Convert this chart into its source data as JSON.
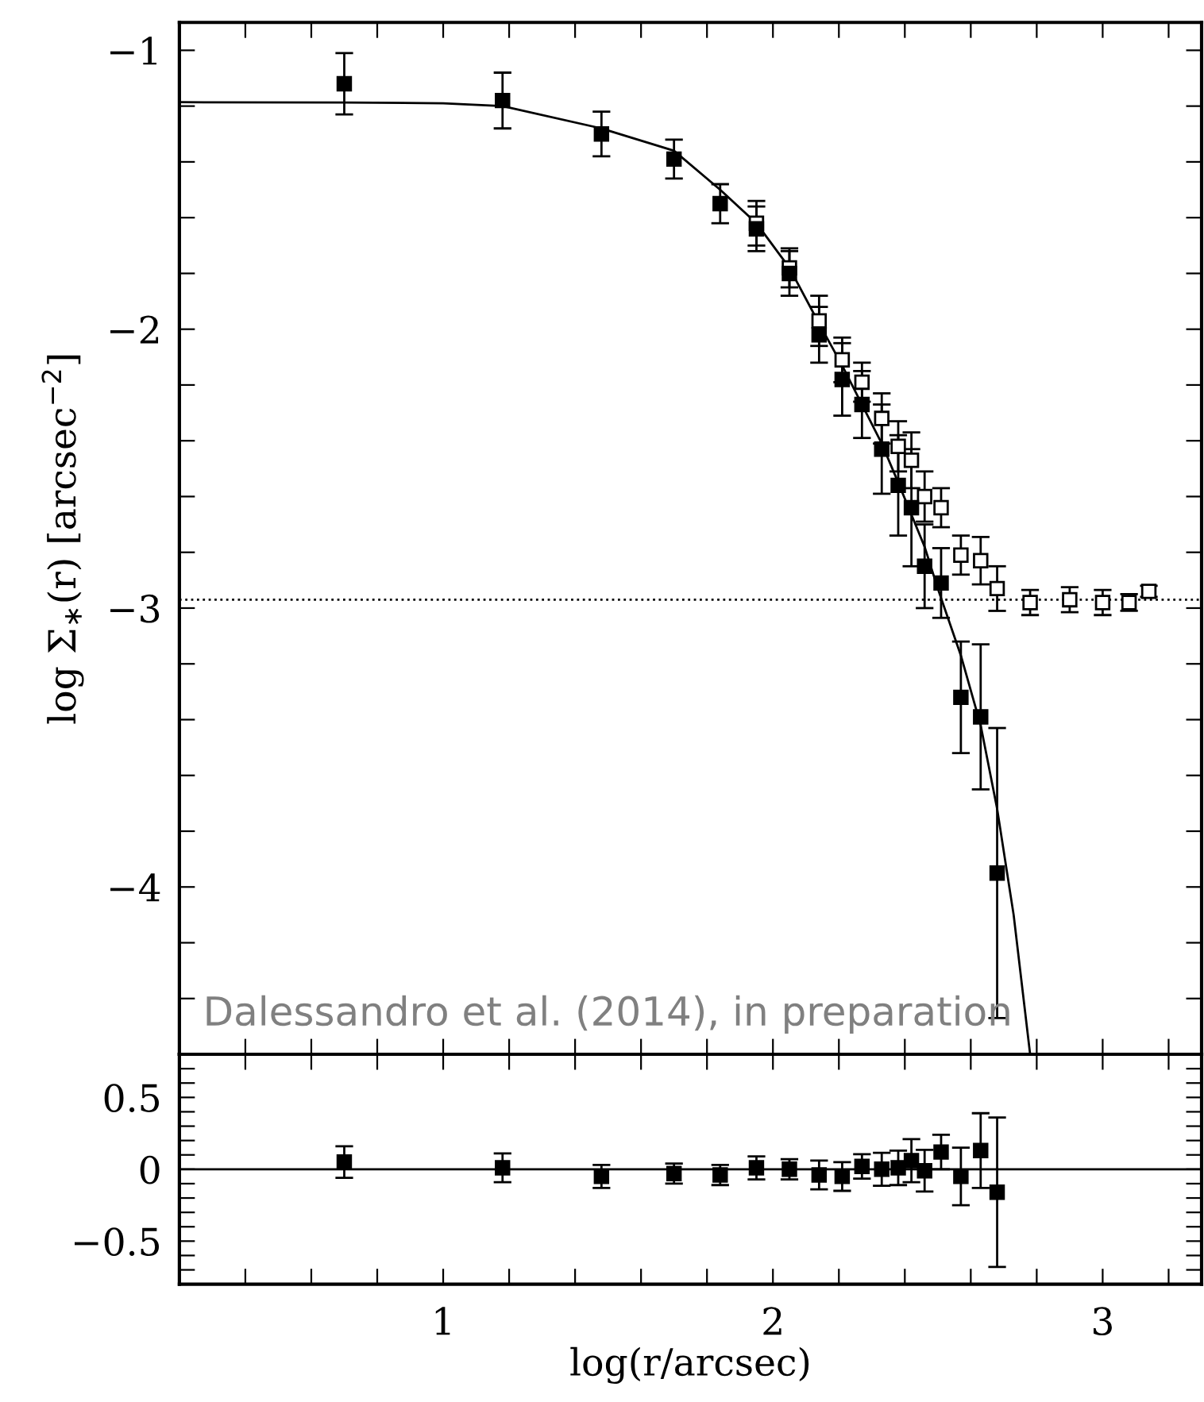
{
  "chart_data": [
    {
      "type": "scatter",
      "ylabel": "log Σ$_{∗}$(r) [arcsec$^{−2}$]",
      "xlim": [
        0.2,
        3.3
      ],
      "ylim": [
        -4.6,
        -0.9
      ],
      "tick_labels": "y",
      "grid": false,
      "marker": "square",
      "xticks": [
        {
          "value": 0.4,
          "label": null
        },
        {
          "value": 0.6,
          "label": null
        },
        {
          "value": 0.8,
          "label": null
        },
        {
          "value": 1,
          "label": null
        },
        {
          "value": 1.2,
          "label": null
        },
        {
          "value": 1.4,
          "label": null
        },
        {
          "value": 1.6,
          "label": null
        },
        {
          "value": 1.8,
          "label": null
        },
        {
          "value": 2,
          "label": null
        },
        {
          "value": 2.2,
          "label": null
        },
        {
          "value": 2.4,
          "label": null
        },
        {
          "value": 2.6,
          "label": null
        },
        {
          "value": 2.8,
          "label": null
        },
        {
          "value": 3,
          "label": null
        },
        {
          "value": 3.2,
          "label": null
        }
      ],
      "yticks": [
        {
          "value": -1,
          "label": "−1"
        },
        {
          "value": -1.2,
          "label": null
        },
        {
          "value": -1.4,
          "label": null
        },
        {
          "value": -1.6,
          "label": null
        },
        {
          "value": -1.8,
          "label": null
        },
        {
          "value": -2,
          "label": "−2"
        },
        {
          "value": -2.2,
          "label": null
        },
        {
          "value": -2.4,
          "label": null
        },
        {
          "value": -2.6,
          "label": null
        },
        {
          "value": -2.8,
          "label": null
        },
        {
          "value": -3,
          "label": "−3"
        },
        {
          "value": -3.2,
          "label": null
        },
        {
          "value": -3.4,
          "label": null
        },
        {
          "value": -3.6,
          "label": null
        },
        {
          "value": -3.8,
          "label": null
        },
        {
          "value": -4,
          "label": "−4"
        },
        {
          "value": -4.2,
          "label": null
        },
        {
          "value": -4.4,
          "label": null
        }
      ],
      "ref_lines": [
        {
          "axis": "y",
          "value": -2.97,
          "line_style": "dotted",
          "color": "#000000"
        }
      ],
      "annotations": [
        "Dalessandro et al. (2014), in preparation"
      ],
      "series": [
        {
          "type": "line",
          "color": "#000000",
          "marker": "none",
          "line_style": "solid",
          "x": [
            0.2,
            0.7,
            1.0,
            1.18,
            1.48,
            1.7,
            1.84,
            1.95,
            2.05,
            2.14,
            2.21,
            2.27,
            2.33,
            2.38,
            2.46,
            2.5,
            2.57,
            2.63,
            2.68,
            2.73,
            2.78
          ],
          "values": [
            -1.186,
            -1.187,
            -1.19,
            -1.2,
            -1.28,
            -1.36,
            -1.5,
            -1.62,
            -1.78,
            -1.98,
            -2.13,
            -2.27,
            -2.41,
            -2.55,
            -2.78,
            -2.93,
            -3.17,
            -3.42,
            -3.72,
            -4.1,
            -4.6
          ]
        },
        {
          "type": "scatter",
          "color": "#000000",
          "x": [
            1.95,
            2.05,
            2.14,
            2.21,
            2.27,
            2.33,
            2.38,
            2.42,
            2.46,
            2.51,
            2.57,
            2.63,
            2.68,
            2.78,
            2.9,
            3.0,
            3.08,
            3.14
          ],
          "values": [
            -1.62,
            -1.78,
            -1.97,
            -2.11,
            -2.19,
            -2.32,
            -2.42,
            -2.47,
            -2.6,
            -2.64,
            -2.81,
            -2.83,
            -2.93,
            -2.98,
            -2.97,
            -2.98,
            -2.98,
            -2.94
          ],
          "errors": [
            0.08,
            0.07,
            0.09,
            0.08,
            0.07,
            0.09,
            0.09,
            0.1,
            0.09,
            0.07,
            0.07,
            0.085,
            0.08,
            0.045,
            0.045,
            0.045,
            0.03,
            0.02
          ]
        },
        {
          "type": "scatter",
          "color": "#000000",
          "x": [
            0.7,
            1.18,
            1.48,
            1.7,
            1.84,
            1.95,
            2.05,
            2.14,
            2.21,
            2.27,
            2.33,
            2.38,
            2.42,
            2.46,
            2.51,
            2.57,
            2.63,
            2.68
          ],
          "values": [
            -1.12,
            -1.18,
            -1.3,
            -1.39,
            -1.55,
            -1.64,
            -1.8,
            -2.02,
            -2.18,
            -2.27,
            -2.43,
            -2.56,
            -2.64,
            -2.85,
            -2.91,
            -3.32,
            -3.39,
            -3.95
          ],
          "errors": [
            0.11,
            0.1,
            0.08,
            0.07,
            0.07,
            0.08,
            0.08,
            0.1,
            0.13,
            0.12,
            0.16,
            0.18,
            0.21,
            0.15,
            0.125,
            0.2,
            0.26,
            0.52
          ]
        }
      ]
    },
    {
      "type": "scatter",
      "xlabel": "log(r/arcsec)",
      "xlim": [
        0.2,
        3.3
      ],
      "ylim": [
        -0.8,
        0.8
      ],
      "grid": false,
      "marker": "square",
      "xticks": [
        {
          "value": 0.4,
          "label": null
        },
        {
          "value": 0.6,
          "label": null
        },
        {
          "value": 0.8,
          "label": null
        },
        {
          "value": 1,
          "label": "1"
        },
        {
          "value": 1.2,
          "label": null
        },
        {
          "value": 1.4,
          "label": null
        },
        {
          "value": 1.6,
          "label": null
        },
        {
          "value": 1.8,
          "label": null
        },
        {
          "value": 2,
          "label": "2"
        },
        {
          "value": 2.2,
          "label": null
        },
        {
          "value": 2.4,
          "label": null
        },
        {
          "value": 2.6,
          "label": null
        },
        {
          "value": 2.8,
          "label": null
        },
        {
          "value": 3,
          "label": "3"
        },
        {
          "value": 3.2,
          "label": null
        }
      ],
      "yticks": [
        {
          "value": 0.7,
          "label": null
        },
        {
          "value": 0.6,
          "label": null
        },
        {
          "value": 0.5,
          "label": "0.5"
        },
        {
          "value": 0.4,
          "label": null
        },
        {
          "value": 0.3,
          "label": null
        },
        {
          "value": 0.2,
          "label": null
        },
        {
          "value": 0.1,
          "label": null
        },
        {
          "value": 0,
          "label": "0"
        },
        {
          "value": -0.1,
          "label": null
        },
        {
          "value": -0.2,
          "label": null
        },
        {
          "value": -0.3,
          "label": null
        },
        {
          "value": -0.4,
          "label": null
        },
        {
          "value": -0.5,
          "label": "−0.5"
        },
        {
          "value": -0.6,
          "label": null
        },
        {
          "value": -0.7,
          "label": null
        }
      ],
      "ref_lines": [
        {
          "axis": "y",
          "value": 0,
          "line_style": "solid",
          "color": "#000000"
        }
      ],
      "series": [
        {
          "type": "scatter",
          "color": "#000000",
          "x": [
            0.7,
            1.18,
            1.48,
            1.7,
            1.84,
            1.95,
            2.05,
            2.14,
            2.21,
            2.27,
            2.33,
            2.38,
            2.42,
            2.46,
            2.51,
            2.57,
            2.63,
            2.68
          ],
          "values": [
            0.05,
            0.01,
            -0.05,
            -0.03,
            -0.04,
            0.01,
            0,
            -0.04,
            -0.05,
            0.02,
            0,
            0.01,
            0.06,
            -0.01,
            0.12,
            -0.05,
            0.13,
            -0.16
          ],
          "errors": [
            0.11,
            0.1,
            0.08,
            0.07,
            0.07,
            0.08,
            0.07,
            0.1,
            0.1,
            0.085,
            0.115,
            0.12,
            0.15,
            0.145,
            0.12,
            0.2,
            0.26,
            0.52
          ]
        }
      ]
    }
  ]
}
